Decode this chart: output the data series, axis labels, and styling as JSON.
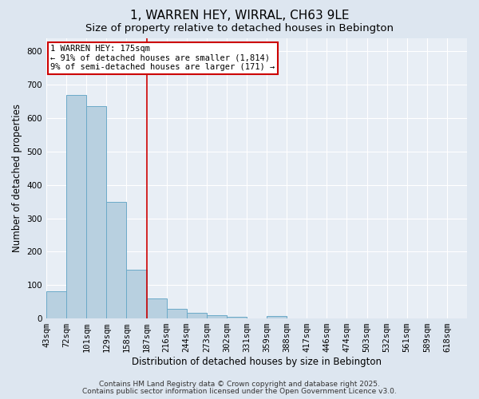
{
  "title": "1, WARREN HEY, WIRRAL, CH63 9LE",
  "subtitle": "Size of property relative to detached houses in Bebington",
  "xlabel": "Distribution of detached houses by size in Bebington",
  "ylabel": "Number of detached properties",
  "footer1": "Contains HM Land Registry data © Crown copyright and database right 2025.",
  "footer2": "Contains public sector information licensed under the Open Government Licence v3.0.",
  "bin_labels": [
    "43sqm",
    "72sqm",
    "101sqm",
    "129sqm",
    "158sqm",
    "187sqm",
    "216sqm",
    "244sqm",
    "273sqm",
    "302sqm",
    "331sqm",
    "359sqm",
    "388sqm",
    "417sqm",
    "446sqm",
    "474sqm",
    "503sqm",
    "532sqm",
    "561sqm",
    "589sqm",
    "618sqm"
  ],
  "bar_values": [
    82,
    670,
    635,
    350,
    147,
    60,
    28,
    17,
    10,
    5,
    0,
    7,
    0,
    0,
    0,
    0,
    0,
    0,
    0,
    0,
    0
  ],
  "bar_color": "#b8d0e0",
  "bar_edge_color": "#6baac8",
  "vline_x_bin": 5,
  "vline_color": "#cc0000",
  "ylim": [
    0,
    840
  ],
  "yticks": [
    0,
    100,
    200,
    300,
    400,
    500,
    600,
    700,
    800
  ],
  "annotation_text": "1 WARREN HEY: 175sqm\n← 91% of detached houses are smaller (1,814)\n9% of semi-detached houses are larger (171) →",
  "bg_color": "#dde6f0",
  "plot_bg_color": "#e8eef5",
  "grid_color": "#ffffff",
  "title_fontsize": 11,
  "subtitle_fontsize": 9.5,
  "axis_label_fontsize": 8.5,
  "tick_fontsize": 7.5,
  "annotation_fontsize": 7.5,
  "footer_fontsize": 6.5
}
